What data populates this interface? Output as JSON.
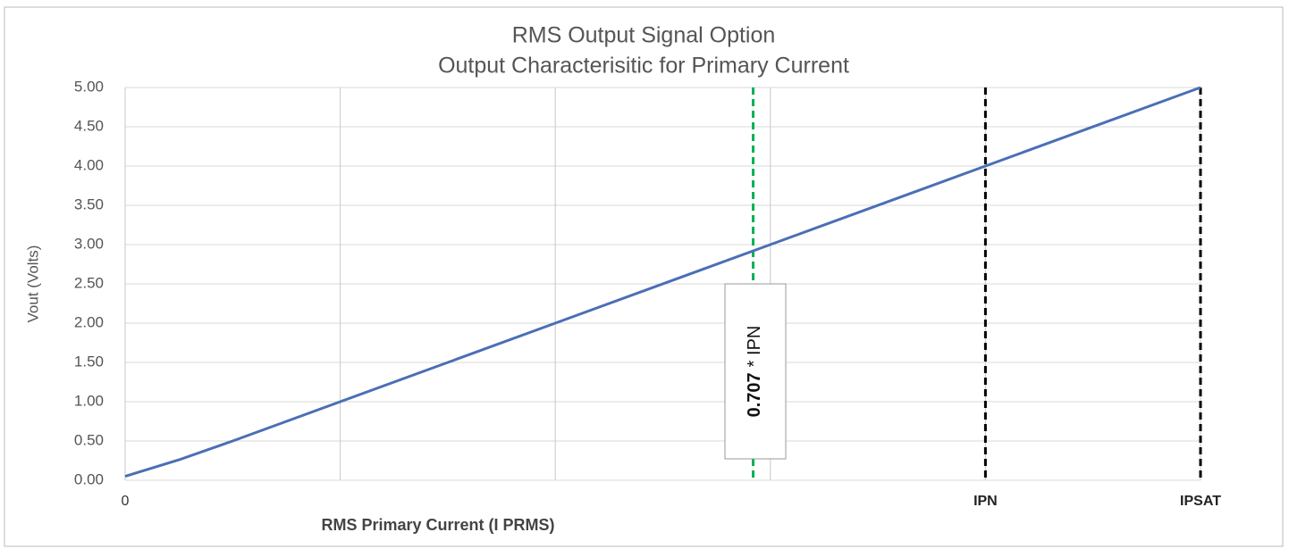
{
  "chart_data": {
    "type": "line",
    "title": "RMS Output Signal Option",
    "subtitle": "Output Characterisitic for Primary Current",
    "x_label": "RMS Primary Current (I PRMS)",
    "y_label": "Vout (Volts)",
    "x": [
      0,
      0.25,
      0.5,
      1,
      2,
      3,
      4,
      5
    ],
    "series": [
      {
        "name": "Vout",
        "color": "#4a6fb5",
        "values": [
          0.05,
          0.26,
          0.5,
          1,
          2,
          3,
          4,
          5
        ]
      }
    ],
    "xlim": [
      0,
      5
    ],
    "xticks": [
      {
        "value": 0,
        "label": "0"
      },
      {
        "value": 1,
        "label": null
      },
      {
        "value": 2,
        "label": null
      },
      {
        "value": 3,
        "label": null
      },
      {
        "value": 4,
        "label": "IPN"
      },
      {
        "value": 5,
        "label": "IPSAT"
      }
    ],
    "ylim": [
      0,
      5
    ],
    "yticks": [
      {
        "value": 0,
        "label": "0.00"
      },
      {
        "value": 0.5,
        "label": "0.50"
      },
      {
        "value": 1,
        "label": "1.00"
      },
      {
        "value": 1.5,
        "label": "1.50"
      },
      {
        "value": 2,
        "label": "2.00"
      },
      {
        "value": 2.5,
        "label": "2.50"
      },
      {
        "value": 3,
        "label": "3.00"
      },
      {
        "value": 3.5,
        "label": "3.50"
      },
      {
        "value": 4,
        "label": "4.00"
      },
      {
        "value": 4.5,
        "label": "4.50"
      },
      {
        "value": 5,
        "label": "5.00"
      }
    ],
    "grid": true,
    "vlines": [
      {
        "x": 2.92,
        "color": "#00b050"
      },
      {
        "x": 4,
        "color": "#000000"
      },
      {
        "x": 5,
        "color": "#000000"
      }
    ],
    "annotation": [
      "0.707",
      "* IPN"
    ]
  }
}
